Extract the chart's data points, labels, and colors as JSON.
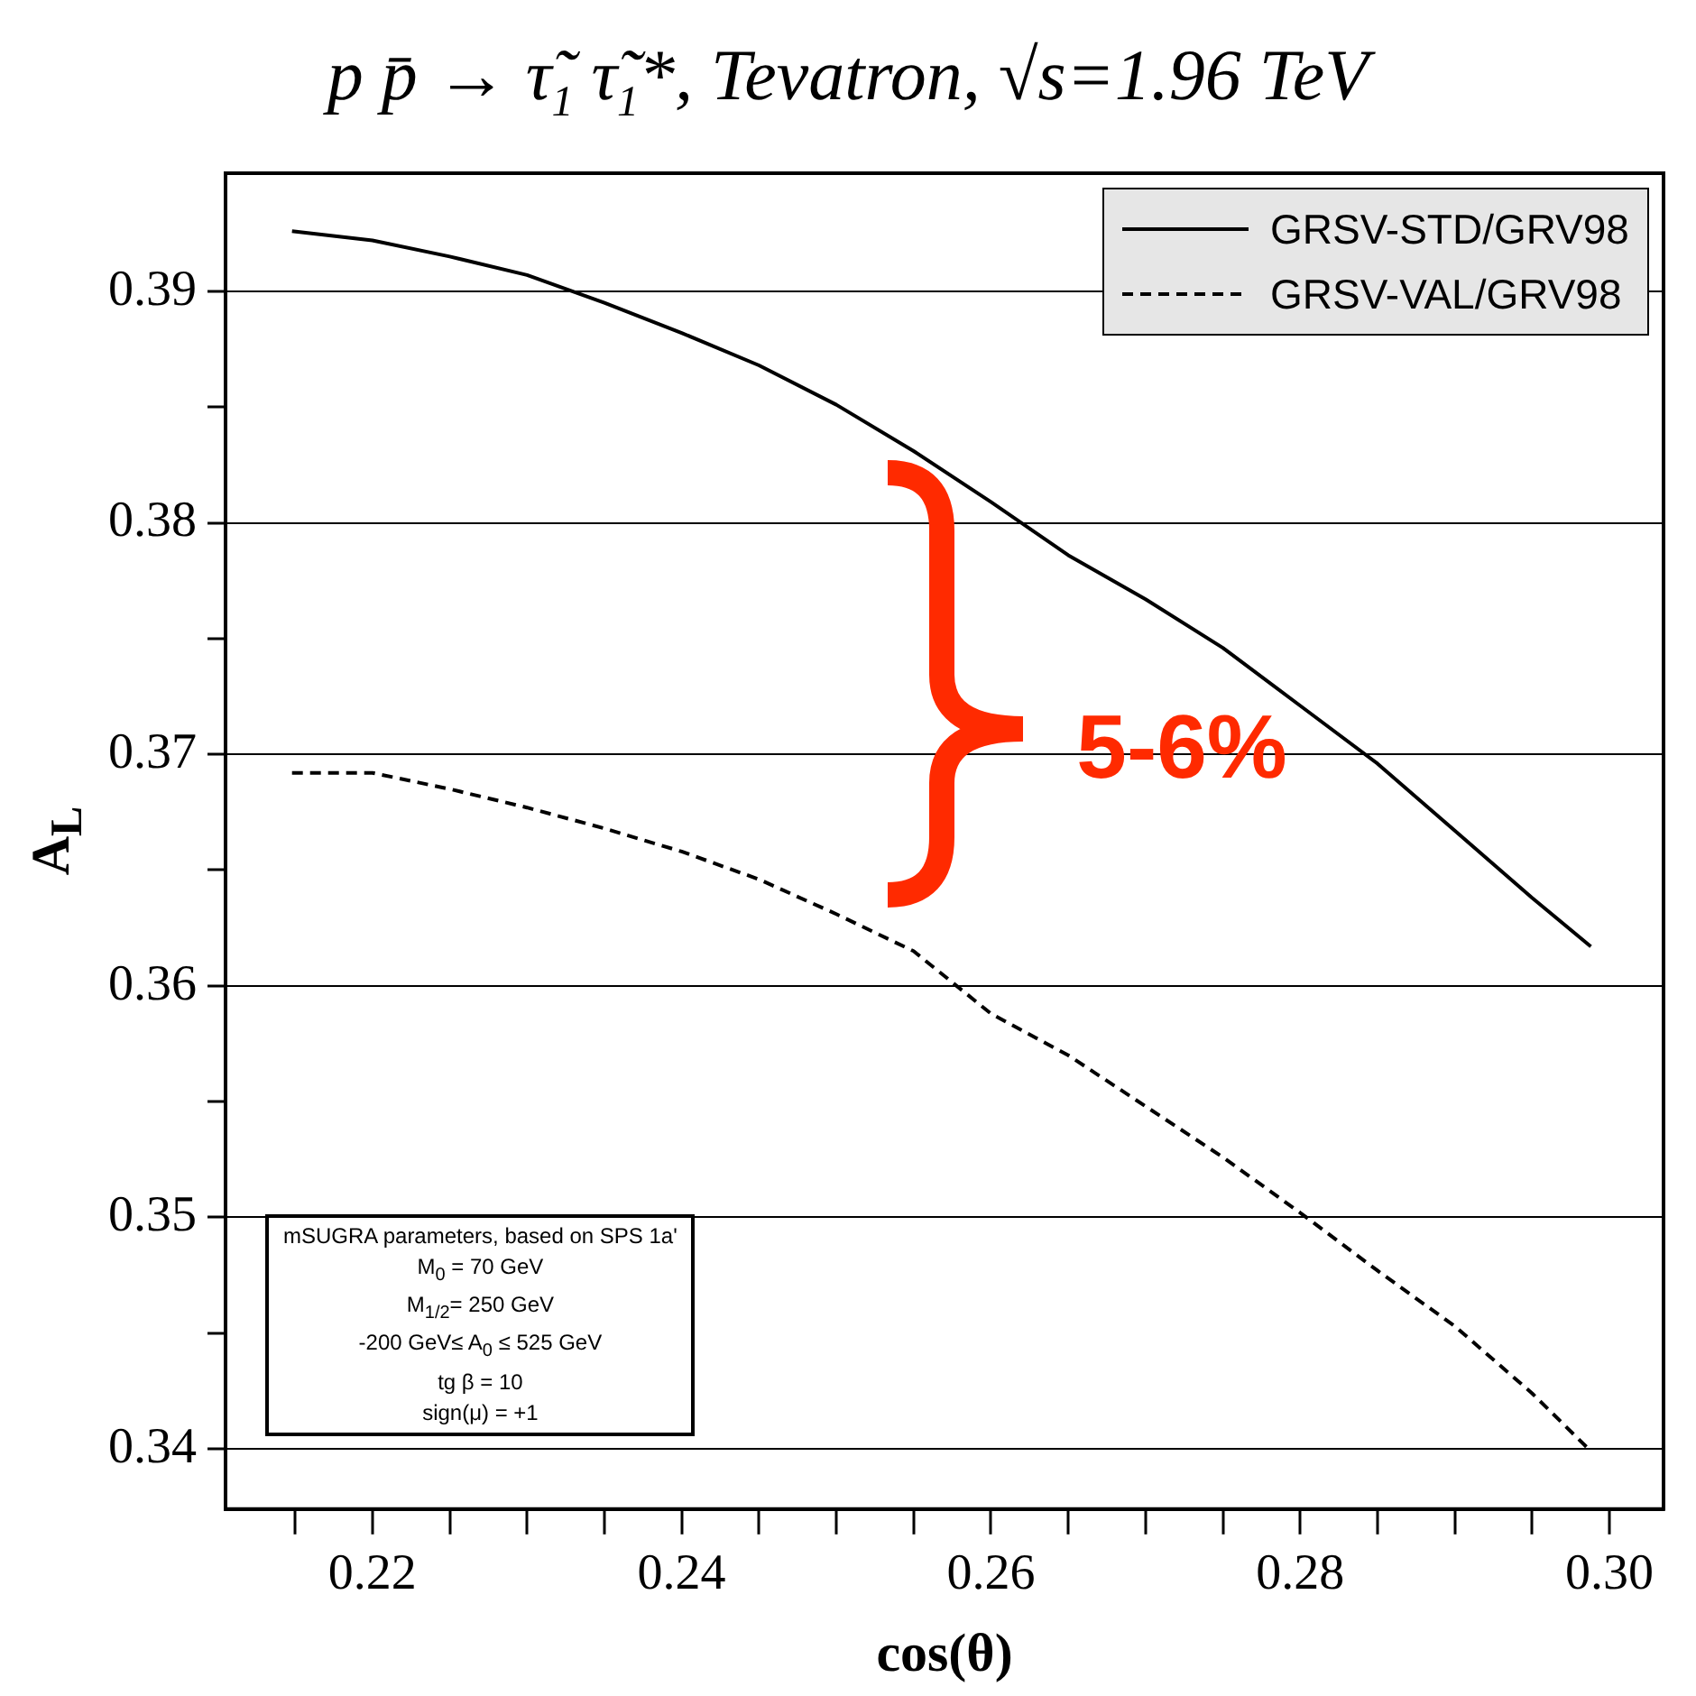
{
  "chart_data": {
    "type": "line",
    "title": "p p̄ → τ̃$_{1}$ τ̃$_{1}$*, Tevatron, √s=1.96 TeV",
    "xlabel": "cos(θ)",
    "ylabel": "A$_{L}$",
    "series": [
      {
        "name": "GRSV-STD/GRV98",
        "color": "#000000",
        "line_style": "solid",
        "x": [
          0.2148,
          0.22,
          0.225,
          0.23,
          0.235,
          0.24,
          0.245,
          0.25,
          0.255,
          0.26,
          0.265,
          0.27,
          0.275,
          0.28,
          0.285,
          0.29,
          0.295,
          0.2988
        ],
        "values": [
          0.3926,
          0.3922,
          0.3915,
          0.3907,
          0.3895,
          0.3882,
          0.3868,
          0.3851,
          0.3831,
          0.3809,
          0.3786,
          0.3767,
          0.3746,
          0.3721,
          0.3696,
          0.3667,
          0.3638,
          0.3617
        ]
      },
      {
        "name": "GRSV-VAL/GRV98",
        "color": "#000000",
        "line_style": "dashed",
        "x": [
          0.2148,
          0.22,
          0.225,
          0.23,
          0.235,
          0.24,
          0.245,
          0.25,
          0.255,
          0.26,
          0.265,
          0.27,
          0.275,
          0.28,
          0.285,
          0.29,
          0.295,
          0.2988
        ],
        "values": [
          0.3692,
          0.3692,
          0.3685,
          0.3677,
          0.3668,
          0.3658,
          0.3646,
          0.3631,
          0.3615,
          0.3588,
          0.357,
          0.3548,
          0.3526,
          0.3502,
          0.3477,
          0.3453,
          0.3424,
          0.3399
        ]
      }
    ],
    "xlim": [
      0.2105,
      0.3035
    ],
    "ylim": [
      0.3374,
      0.3951
    ],
    "xticks": [
      {
        "value": 0.215,
        "label": null
      },
      {
        "value": 0.22,
        "label": "0.22"
      },
      {
        "value": 0.225,
        "label": null
      },
      {
        "value": 0.23,
        "label": null
      },
      {
        "value": 0.235,
        "label": null
      },
      {
        "value": 0.24,
        "label": "0.24"
      },
      {
        "value": 0.245,
        "label": null
      },
      {
        "value": 0.25,
        "label": null
      },
      {
        "value": 0.255,
        "label": null
      },
      {
        "value": 0.26,
        "label": "0.26"
      },
      {
        "value": 0.265,
        "label": null
      },
      {
        "value": 0.27,
        "label": null
      },
      {
        "value": 0.275,
        "label": null
      },
      {
        "value": 0.28,
        "label": "0.28"
      },
      {
        "value": 0.285,
        "label": null
      },
      {
        "value": 0.29,
        "label": null
      },
      {
        "value": 0.295,
        "label": null
      },
      {
        "value": 0.3,
        "label": "0.30"
      }
    ],
    "yticks": [
      0.34,
      {
        "value": 0.345,
        "label": null
      },
      0.35,
      {
        "value": 0.355,
        "label": null
      },
      0.36,
      {
        "value": 0.365,
        "label": null
      },
      0.37,
      {
        "value": 0.375,
        "label": null
      },
      0.38,
      {
        "value": 0.385,
        "label": null
      },
      0.39
    ],
    "grid": "y",
    "legend": "top right",
    "marker": "none",
    "annotations": [
      "5-6%",
      "mSUGRA parameters, based on SPS 1a'",
      "M$_{0}$ = 70 GeV",
      "M$_{1/2}$= 250 GeV",
      "-200 GeV≤ A$_{0}$ ≤ 525 GeV",
      "tg β = 10",
      "sign(μ) = +1"
    ]
  }
}
